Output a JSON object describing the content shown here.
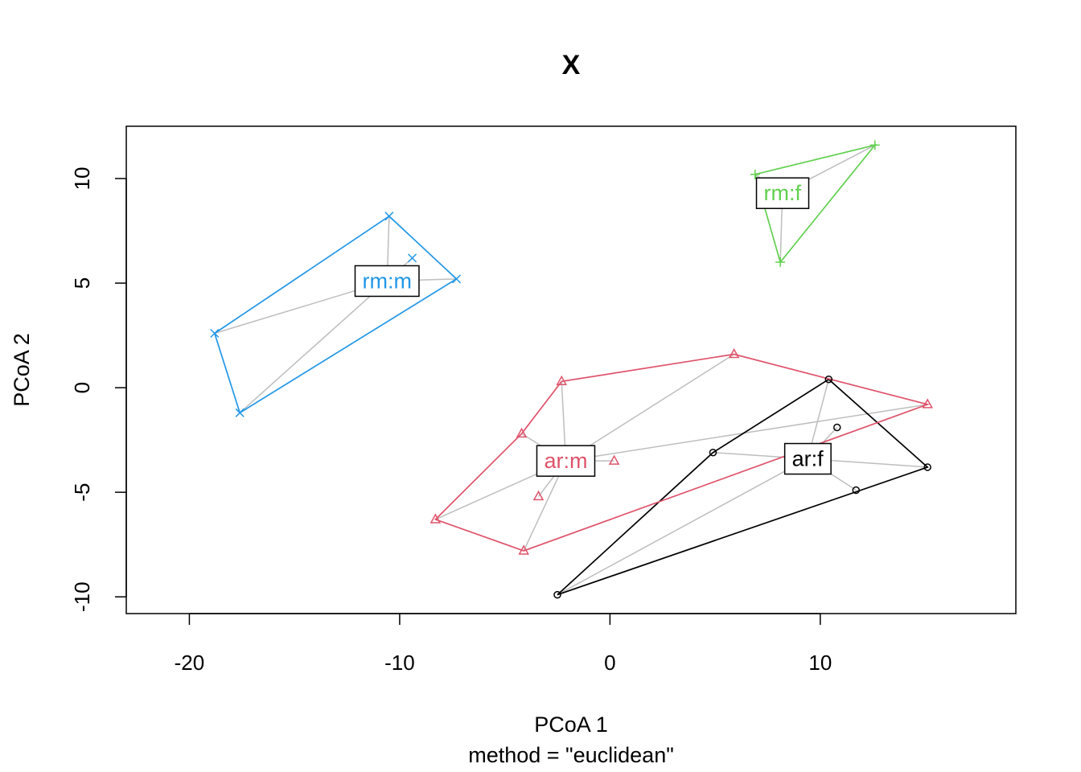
{
  "chart_data": {
    "type": "scatter",
    "title": "X",
    "xlabel": "PCoA 1",
    "xsublabel": "method = \"euclidean\"",
    "ylabel": "PCoA 2",
    "xlim": [
      -23,
      19.3
    ],
    "ylim": [
      -10.8,
      12.5
    ],
    "xticks": [
      "-20",
      "-10",
      "0",
      "10"
    ],
    "xtick_values": [
      -20,
      -10,
      0,
      10
    ],
    "yticks": [
      "-10",
      "-5",
      "0",
      "5",
      "10"
    ],
    "ytick_values": [
      -10,
      -5,
      0,
      5,
      10
    ],
    "grid": false,
    "spider_color": "#BEBEBE",
    "groups": [
      {
        "name": "ar:f",
        "color": "#000000",
        "marker": "circle",
        "centroid": [
          9.4,
          -3.4
        ],
        "points": [
          [
            10.4,
            0.4
          ],
          [
            10.8,
            -1.9
          ],
          [
            4.9,
            -3.1
          ],
          [
            15.1,
            -3.8
          ],
          [
            11.7,
            -4.9
          ],
          [
            -2.5,
            -9.9
          ]
        ],
        "hull": [
          [
            -2.5,
            -9.9
          ],
          [
            4.9,
            -3.1
          ],
          [
            10.4,
            0.4
          ],
          [
            15.1,
            -3.8
          ]
        ]
      },
      {
        "name": "ar:m",
        "color": "#DF536B",
        "marker": "triangle",
        "centroid": [
          -2.1,
          -3.5
        ],
        "points": [
          [
            5.9,
            1.6
          ],
          [
            -2.3,
            0.3
          ],
          [
            15.1,
            -0.8
          ],
          [
            -4.2,
            -2.2
          ],
          [
            0.2,
            -3.5
          ],
          [
            -3.4,
            -5.2
          ],
          [
            -8.3,
            -6.3
          ],
          [
            -4.1,
            -7.8
          ]
        ],
        "hull": [
          [
            -8.3,
            -6.3
          ],
          [
            -4.2,
            -2.2
          ],
          [
            -2.3,
            0.3
          ],
          [
            5.9,
            1.6
          ],
          [
            15.1,
            -0.8
          ],
          [
            -4.1,
            -7.8
          ]
        ]
      },
      {
        "name": "rm:f",
        "color": "#61D04F",
        "marker": "plus",
        "centroid": [
          8.2,
          9.3
        ],
        "points": [
          [
            12.6,
            11.6
          ],
          [
            6.9,
            10.2
          ],
          [
            8.1,
            6.0
          ]
        ],
        "hull": [
          [
            6.9,
            10.2
          ],
          [
            12.6,
            11.6
          ],
          [
            8.1,
            6.0
          ]
        ]
      },
      {
        "name": "rm:m",
        "color": "#2297E6",
        "marker": "x",
        "centroid": [
          -10.6,
          5.1
        ],
        "points": [
          [
            -10.5,
            8.2
          ],
          [
            -9.4,
            6.2
          ],
          [
            -7.3,
            5.2
          ],
          [
            -18.8,
            2.6
          ],
          [
            -17.6,
            -1.2
          ]
        ],
        "hull": [
          [
            -18.8,
            2.6
          ],
          [
            -10.5,
            8.2
          ],
          [
            -7.3,
            5.2
          ],
          [
            -17.6,
            -1.2
          ]
        ]
      }
    ]
  }
}
